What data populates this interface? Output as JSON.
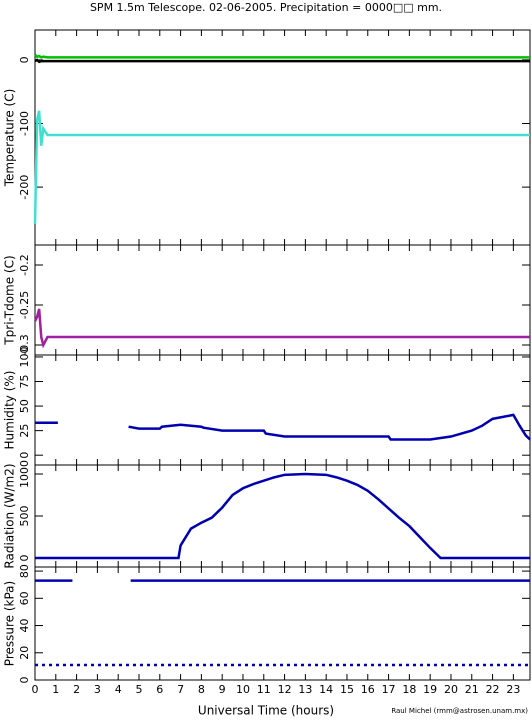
{
  "chart_data": [
    {
      "type": "line",
      "title": "SPM 1.5m Telescope. 02-06-2005. Precipitation = 0000□□ mm.",
      "ylabel": "Temperature (C)",
      "x": [
        0,
        0.1,
        0.2,
        0.3,
        0.4,
        0.6,
        23.8
      ],
      "series": [
        {
          "color": "#00c000",
          "values": [
            8,
            5,
            6,
            4,
            5,
            4,
            4
          ]
        },
        {
          "color": "#000000",
          "values": [
            -2,
            0,
            -3,
            -2,
            -2,
            -2,
            -2
          ]
        },
        {
          "color": "#40e0d0",
          "values": [
            -258,
            -95,
            -80,
            -135,
            -108,
            -118,
            -118
          ]
        }
      ],
      "ylim": [
        -291,
        47
      ],
      "yticks": [
        0,
        -100,
        -200
      ]
    },
    {
      "type": "line",
      "ylabel": "Tpri-Tdome (C)",
      "x": [
        0,
        0.1,
        0.2,
        0.3,
        0.4,
        0.6,
        23.8
      ],
      "series": [
        {
          "color": "#a0209f",
          "values": [
            -0.27,
            -0.265,
            -0.255,
            -0.29,
            -0.3,
            -0.29,
            -0.29
          ]
        }
      ],
      "ylim": [
        -0.3125,
        -0.175
      ],
      "yticks": [
        -0.2,
        -0.25,
        -0.3
      ]
    },
    {
      "type": "line",
      "ylabel": "Humidity (%)",
      "x": [
        0,
        1.1,
        1.2,
        4.5,
        5,
        6,
        6.1,
        7,
        8,
        8.1,
        9,
        11,
        11.1,
        12,
        17,
        17.1,
        19,
        20,
        20.5,
        21,
        21.5,
        22,
        23,
        23.3,
        23.6,
        23.8
      ],
      "series": [
        {
          "color": "#0000b0",
          "values": [
            33,
            33,
            null,
            29,
            27,
            27,
            29,
            31,
            29,
            28,
            25,
            25,
            22,
            19,
            19,
            16,
            16,
            19,
            22,
            25,
            30,
            37,
            41,
            30,
            20,
            16
          ]
        }
      ],
      "ylim": [
        -10,
        102
      ],
      "yticks": [
        0,
        25,
        50,
        75,
        100
      ]
    },
    {
      "type": "line",
      "ylabel": "Radiation (W/m2)",
      "x": [
        0,
        6.9,
        7,
        7.5,
        8,
        8.5,
        9,
        9.5,
        10,
        10.5,
        11,
        11.5,
        12,
        13,
        14,
        14.5,
        15,
        15.5,
        16,
        16.5,
        17,
        17.5,
        18,
        18.5,
        19,
        19.5,
        23.8
      ],
      "series": [
        {
          "color": "#0000b0",
          "values": [
            0,
            0,
            150,
            350,
            420,
            480,
            600,
            750,
            830,
            880,
            920,
            960,
            990,
            1000,
            990,
            960,
            920,
            870,
            800,
            700,
            590,
            480,
            380,
            250,
            120,
            0,
            0
          ]
        }
      ],
      "ylim": [
        -107,
        1107
      ],
      "yticks": [
        0,
        500,
        1000
      ]
    },
    {
      "type": "line",
      "ylabel": "Pressure (kPa)",
      "xlabel": "Universal Time (hours)",
      "credit": "Raul Michel (rmm@astrosen.unam.mx)",
      "x": [
        0,
        1.8,
        4.5,
        4.6,
        23.8
      ],
      "series": [
        {
          "color": "#0000b0",
          "values": [
            73,
            73,
            null,
            73,
            73
          ]
        },
        {
          "color": "#0000b0",
          "style": "dotted",
          "values": [
            11,
            11,
            11,
            11,
            11
          ]
        }
      ],
      "ylim": [
        0,
        83
      ],
      "yticks": [
        0,
        20,
        40,
        60,
        80
      ],
      "xlim": [
        0,
        23.8
      ],
      "xticks": [
        0,
        1,
        2,
        3,
        4,
        5,
        6,
        7,
        8,
        9,
        10,
        11,
        12,
        13,
        14,
        15,
        16,
        17,
        18,
        19,
        20,
        21,
        22,
        23
      ]
    }
  ]
}
